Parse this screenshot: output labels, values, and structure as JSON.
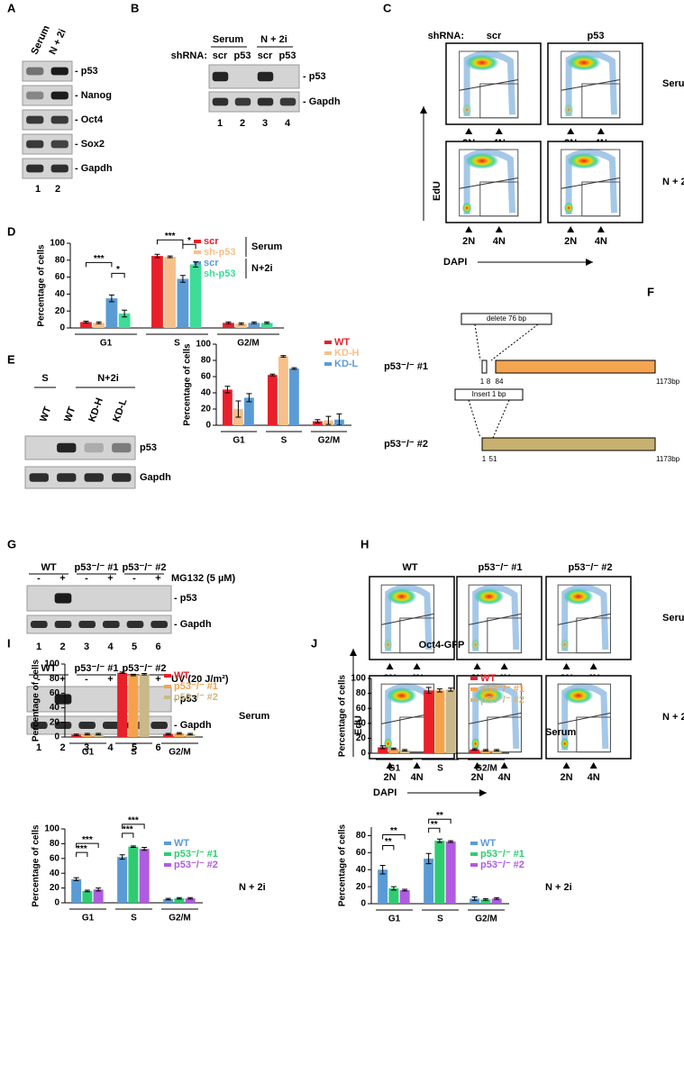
{
  "panel_labels": [
    "A",
    "B",
    "C",
    "D",
    "E",
    "F",
    "G",
    "H",
    "I",
    "J"
  ],
  "blot_A": {
    "columns": [
      "Serum",
      "N + 2i"
    ],
    "bands": [
      "- p53",
      "- Nanog",
      "- Oct4",
      "- Sox2",
      "- Gapdh"
    ],
    "lanes": [
      "1",
      "2"
    ]
  },
  "blot_B": {
    "groups": [
      "Serum",
      "N + 2i"
    ],
    "shrna_label": "shRNA:",
    "columns": [
      "scr",
      "p53",
      "scr",
      "p53"
    ],
    "bands": [
      "- p53",
      "- Gapdh"
    ],
    "lanes": [
      "1",
      "2",
      "3",
      "4"
    ]
  },
  "flow_C": {
    "shrna_label": "shRNA:",
    "columns": [
      "scr",
      "p53"
    ],
    "rows": [
      "Serum",
      "N + 2i"
    ],
    "gates": [
      "2N",
      "4N"
    ],
    "y_axis": "EdU",
    "x_axis": "DAPI"
  },
  "blot_E": {
    "groups": [
      "S",
      "N+2i"
    ],
    "columns": [
      "WT",
      "WT",
      "KD-H",
      "KD-L"
    ],
    "bands": [
      "p53",
      "Gapdh"
    ]
  },
  "diagram_F": {
    "rows": [
      {
        "label": "p53⁻/⁻ #1",
        "box": "delete 76 bp",
        "ticks": [
          "1",
          "8",
          "84"
        ],
        "end": "1173bp"
      },
      {
        "label": "p53⁻/⁻ #2",
        "box": "Insert 1 bp",
        "ticks": [
          "1",
          "51"
        ],
        "end": "1173bp"
      }
    ]
  },
  "blot_G": [
    {
      "groups": [
        "WT",
        "p53⁻/⁻ #1",
        "p53⁻/⁻ #2"
      ],
      "signs": [
        "-",
        "+",
        "-",
        "+",
        "-",
        "+"
      ],
      "treatment": "MG132 (5 µM)",
      "bands": [
        "- p53",
        "- Gapdh"
      ],
      "lanes": [
        "1",
        "2",
        "3",
        "4",
        "5",
        "6"
      ]
    },
    {
      "groups": [
        "WT",
        "p53⁻/⁻ #1",
        "p53⁻/⁻ #2"
      ],
      "signs": [
        "-",
        "+",
        "-",
        "+",
        "-",
        "+"
      ],
      "treatment": "UV (20 J/m²)",
      "bands": [
        "- p53",
        "- Gapdh"
      ],
      "lanes": [
        "1",
        "2",
        "3",
        "4",
        "5",
        "6"
      ]
    }
  ],
  "flow_H": {
    "columns": [
      "WT",
      "p53⁻/⁻ #1",
      "p53⁻/⁻ #2"
    ],
    "rows": [
      "Serum",
      "N + 2i"
    ],
    "gates": [
      "2N",
      "4N"
    ],
    "y_axis": "EdU",
    "x_axis": "DAPI"
  },
  "chart_data": [
    {
      "type": "bar",
      "ylabel": "Percentage of cells",
      "categories": [
        "G1",
        "S",
        "G2/M"
      ],
      "series": [
        {
          "name": "scr",
          "color": "#e8202a",
          "values": [
            7,
            85,
            6
          ],
          "errors": [
            1,
            2,
            1
          ]
        },
        {
          "name": "sh-p53",
          "color": "#f7c08a",
          "values": [
            6,
            84,
            5
          ],
          "errors": [
            1,
            1,
            1
          ]
        },
        {
          "name": "scr",
          "color": "#5b9bd5",
          "values": [
            35,
            58,
            6
          ],
          "errors": [
            4,
            4,
            1
          ]
        },
        {
          "name": "sh-p53",
          "color": "#3ddc97",
          "values": [
            17,
            75,
            6
          ],
          "errors": [
            4,
            3,
            1
          ]
        }
      ],
      "legend_groups": [
        "Serum",
        "N+2i"
      ],
      "annotations": [
        "***",
        "*",
        "***",
        "*"
      ],
      "ylim": [
        0,
        100
      ],
      "yticks": [
        0,
        20,
        40,
        60,
        80,
        100
      ]
    },
    {
      "type": "bar",
      "ylabel": "Percentage of cells",
      "categories": [
        "G1",
        "S",
        "G2/M"
      ],
      "series": [
        {
          "name": "WT",
          "color": "#e8202a",
          "values": [
            44,
            62,
            5
          ],
          "errors": [
            4,
            1,
            2
          ]
        },
        {
          "name": "KD-H",
          "color": "#f7c08a",
          "values": [
            20,
            85,
            6
          ],
          "errors": [
            10,
            1,
            5
          ]
        },
        {
          "name": "KD-L",
          "color": "#5b9bd5",
          "values": [
            34,
            70,
            7
          ],
          "errors": [
            5,
            1,
            7
          ]
        }
      ],
      "ylim": [
        0,
        100
      ],
      "yticks": [
        0,
        20,
        40,
        60,
        80,
        100
      ]
    },
    {
      "type": "bar",
      "ylabel": "Percentage of cells",
      "categories": [
        "G1",
        "S",
        "G2/M"
      ],
      "side_label": "Serum",
      "series": [
        {
          "name": "WT",
          "color": "#e8202a",
          "values": [
            3,
            88,
            4
          ],
          "errors": [
            1,
            1,
            1
          ]
        },
        {
          "name": "p53⁻/⁻ #1",
          "color": "#f7a24a",
          "values": [
            4,
            85,
            5
          ],
          "errors": [
            1,
            1,
            1
          ]
        },
        {
          "name": "p53⁻/⁻ #2",
          "color": "#c8b88a",
          "values": [
            4,
            86,
            4
          ],
          "errors": [
            1,
            1,
            1
          ]
        }
      ],
      "ylim": [
        0,
        100
      ],
      "yticks": [
        0,
        20,
        40,
        60,
        80,
        100
      ]
    },
    {
      "type": "bar",
      "ylabel": "Percentage of cells",
      "categories": [
        "G1",
        "S",
        "G2/M"
      ],
      "side_label": "N + 2i",
      "series": [
        {
          "name": "WT",
          "color": "#5b9bd5",
          "values": [
            32,
            62,
            5
          ],
          "errors": [
            2,
            3,
            1
          ]
        },
        {
          "name": "p53⁻/⁻ #1",
          "color": "#2ecc71",
          "values": [
            16,
            76,
            6
          ],
          "errors": [
            1,
            1,
            1
          ]
        },
        {
          "name": "p53⁻/⁻ #2",
          "color": "#b05be0",
          "values": [
            18,
            73,
            6
          ],
          "errors": [
            2,
            2,
            1
          ]
        }
      ],
      "annotations": [
        "***",
        "***",
        "***",
        "***"
      ],
      "ylim": [
        0,
        100
      ],
      "yticks": [
        0,
        20,
        40,
        60,
        80,
        100
      ]
    },
    {
      "type": "bar",
      "title": "Oct4-GFP",
      "ylabel": "Percentage of cells",
      "categories": [
        "G1",
        "S",
        "G2/M"
      ],
      "side_label": "Serum",
      "series": [
        {
          "name": "WT",
          "color": "#e8202a",
          "values": [
            8,
            84,
            5
          ],
          "errors": [
            2,
            4,
            1
          ]
        },
        {
          "name": "p53⁻/⁻ #1",
          "color": "#f7a24a",
          "values": [
            6,
            84,
            4
          ],
          "errors": [
            1,
            2,
            1
          ]
        },
        {
          "name": "p53⁻/⁻ #2",
          "color": "#c8b88a",
          "values": [
            4,
            85,
            4
          ],
          "errors": [
            1,
            2,
            1
          ]
        }
      ],
      "ylim": [
        0,
        100
      ],
      "yticks": [
        0,
        20,
        40,
        60,
        80,
        100
      ]
    },
    {
      "type": "bar",
      "ylabel": "Percentage of cells",
      "categories": [
        "G1",
        "S",
        "G2/M"
      ],
      "side_label": "N + 2i",
      "series": [
        {
          "name": "WT",
          "color": "#5b9bd5",
          "values": [
            40,
            53,
            6
          ],
          "errors": [
            5,
            6,
            2
          ]
        },
        {
          "name": "p53⁻/⁻ #1",
          "color": "#2ecc71",
          "values": [
            18,
            74,
            5
          ],
          "errors": [
            2,
            2,
            1
          ]
        },
        {
          "name": "p53⁻/⁻ #2",
          "color": "#b05be0",
          "values": [
            16,
            73,
            6
          ],
          "errors": [
            1,
            1,
            1
          ]
        }
      ],
      "annotations": [
        "**",
        "**",
        "**",
        "**"
      ],
      "ylim": [
        0,
        90
      ],
      "yticks": [
        0,
        20,
        40,
        60,
        80
      ]
    }
  ]
}
